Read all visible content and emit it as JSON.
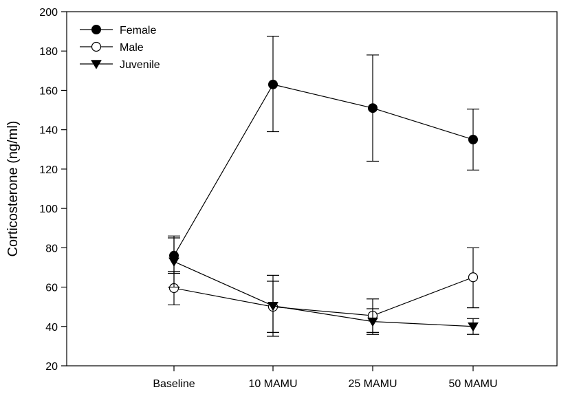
{
  "chart_data": {
    "type": "line",
    "title": "",
    "xlabel": "",
    "ylabel": "Corticosterone (ng/ml)",
    "categories": [
      "Baseline",
      "10 MAMU",
      "25 MAMU",
      "50 MAMU"
    ],
    "ylim": [
      20,
      200
    ],
    "yticks": [
      20,
      40,
      60,
      80,
      100,
      120,
      140,
      160,
      180,
      200
    ],
    "grid": false,
    "legend_position": "top-left",
    "series": [
      {
        "name": "Female",
        "marker": "filled-circle",
        "color": "#000000",
        "values": [
          76,
          163,
          151,
          135
        ],
        "error_low": [
          67,
          139,
          124,
          119.5
        ],
        "error_high": [
          85,
          187.5,
          178,
          150.5
        ]
      },
      {
        "name": "Male",
        "marker": "open-circle",
        "color": "#000000",
        "values": [
          59.5,
          50,
          45.5,
          65
        ],
        "error_low": [
          51,
          37,
          37,
          49.5
        ],
        "error_high": [
          68,
          63,
          54,
          80
        ]
      },
      {
        "name": "Juvenile",
        "marker": "filled-triangle-down",
        "color": "#000000",
        "values": [
          73,
          50.5,
          42.5,
          40
        ],
        "error_low": [
          60,
          35,
          36,
          36
        ],
        "error_high": [
          86,
          66,
          49,
          44
        ]
      }
    ]
  }
}
